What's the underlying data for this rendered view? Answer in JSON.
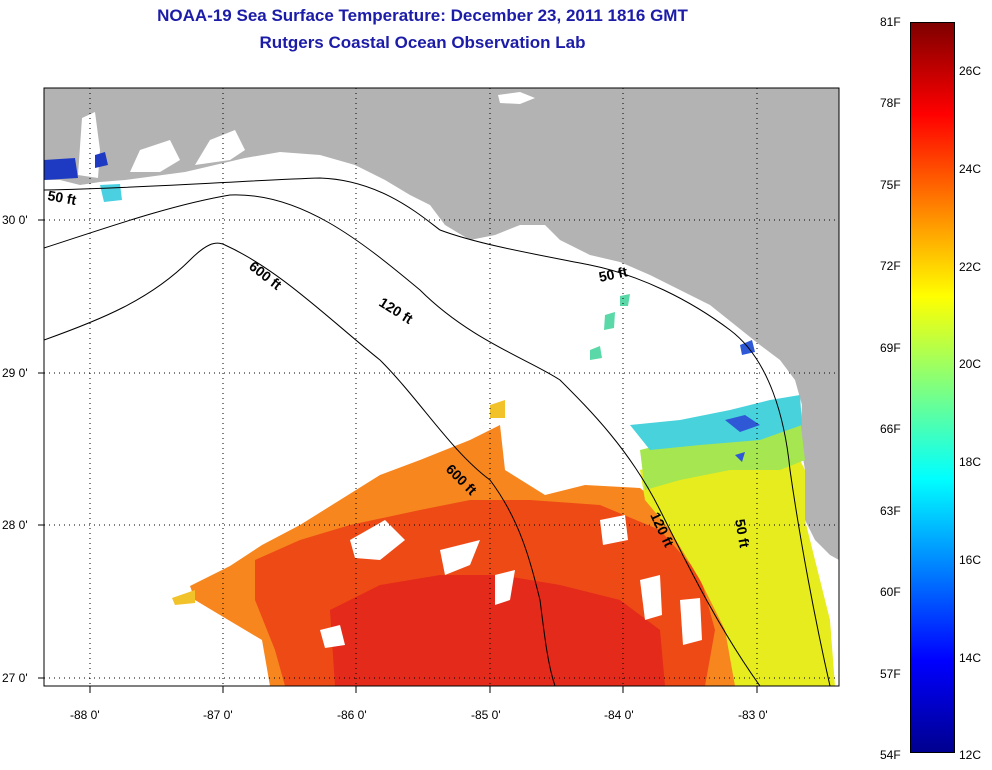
{
  "title": {
    "line1": "NOAA-19 Sea Surface Temperature:  December 23, 2011 1816 GMT",
    "line2": "Rutgers Coastal Ocean Observation Lab"
  },
  "map": {
    "lon_ticks": [
      "-88 0'",
      "-87 0'",
      "-86 0'",
      "-85 0'",
      "-84 0'",
      "-83 0'"
    ],
    "lat_ticks": [
      "30 0'",
      "29 0'",
      "28 0'",
      "27 0'"
    ],
    "contour_labels": [
      "50 ft",
      "600 ft",
      "120 ft",
      "50 ft",
      "600 ft",
      "120 ft",
      "50 ft"
    ],
    "colors": {
      "land": "#b3b3b3",
      "water": "#ffffff",
      "sst_warm": "#f2420f",
      "sst_hot": "#e8201a",
      "sst_orange": "#f7861e",
      "sst_yellow": "#e8ee1a",
      "sst_green": "#9ee64a",
      "sst_cyan": "#3cd7e2",
      "sst_blue": "#2a55d8"
    }
  },
  "colorbar": {
    "fahrenheit_labels": [
      "81F",
      "78F",
      "75F",
      "72F",
      "69F",
      "66F",
      "63F",
      "60F",
      "57F",
      "54F"
    ],
    "celsius_labels": [
      "26C",
      "24C",
      "22C",
      "20C",
      "18C",
      "16C",
      "14C",
      "12C"
    ],
    "gradient": [
      "#7f0000",
      "#ff0000",
      "#ff7f00",
      "#ffff00",
      "#7fff7f",
      "#00ffff",
      "#007fff",
      "#0000ff",
      "#00008f"
    ]
  }
}
